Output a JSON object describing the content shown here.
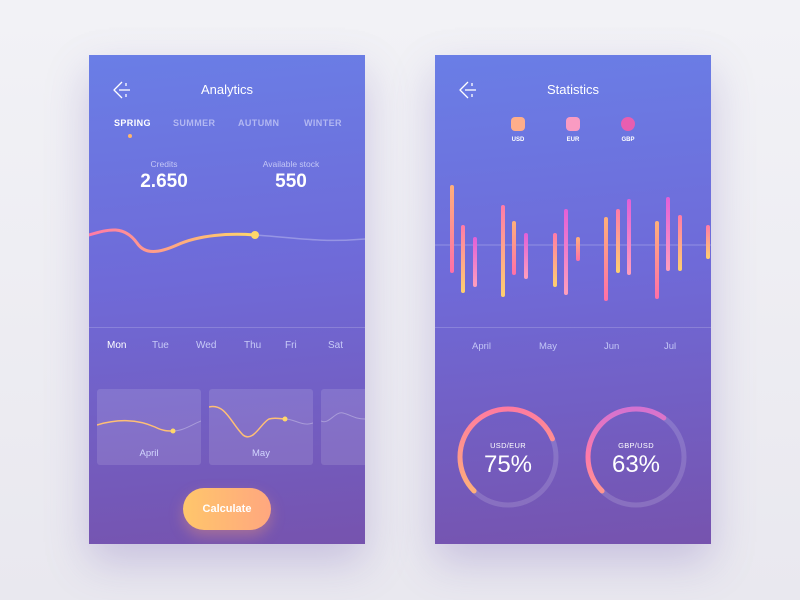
{
  "analytics": {
    "title": "Analytics",
    "seasons": [
      {
        "label": "SPRING",
        "active": true
      },
      {
        "label": "SUMMER",
        "active": false
      },
      {
        "label": "AUTUMN",
        "active": false
      },
      {
        "label": "WINTER",
        "active": false
      }
    ],
    "stats": [
      {
        "label": "Credits",
        "value": "2.650"
      },
      {
        "label": "Available stock",
        "value": "550"
      }
    ],
    "days": [
      {
        "label": "Mon",
        "active": true
      },
      {
        "label": "Tue",
        "active": false
      },
      {
        "label": "Wed",
        "active": false
      },
      {
        "label": "Thu",
        "active": false
      },
      {
        "label": "Fri",
        "active": false
      },
      {
        "label": "Sat",
        "active": false
      }
    ],
    "cards": [
      {
        "label": "April"
      },
      {
        "label": "May"
      },
      {
        "label": ""
      }
    ],
    "calculate_label": "Calculate"
  },
  "statistics": {
    "title": "Statistics",
    "currencies": [
      {
        "label": "USD",
        "color": "#ffae8a"
      },
      {
        "label": "EUR",
        "color": "#f99bc2"
      },
      {
        "label": "GBP",
        "color": "#e85eb0"
      }
    ],
    "months": [
      "April",
      "May",
      "Jun",
      "Jul"
    ],
    "gauges": [
      {
        "label": "USD/EUR",
        "value": "75%",
        "fraction": 0.75
      },
      {
        "label": "GBP/USD",
        "value": "63%",
        "fraction": 0.63
      }
    ]
  },
  "colors": {
    "orange": "#ffc36a",
    "pink": "#ff7aa8",
    "magenta": "#d86fd6",
    "panel_top": "#6a7ee6",
    "panel_bottom": "#7653ae"
  }
}
